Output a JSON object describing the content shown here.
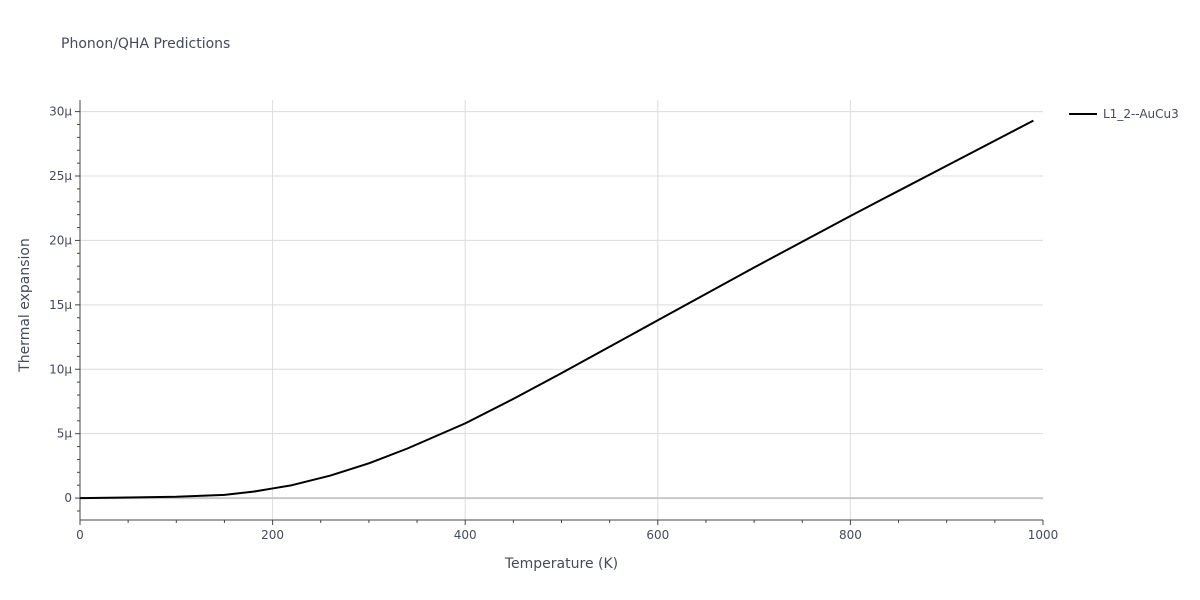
{
  "chart_data": {
    "type": "line",
    "title": "Phonon/QHA Predictions",
    "xlabel": "Temperature (K)",
    "ylabel": "Thermal expansion",
    "xlim": [
      0,
      1000
    ],
    "ylim": [
      -1.7e-06,
      3.09e-05
    ],
    "x_ticks": [
      0,
      200,
      400,
      600,
      800,
      1000
    ],
    "x_tick_labels": [
      "0",
      "200",
      "400",
      "600",
      "800",
      "1000"
    ],
    "y_ticks": [
      0,
      5e-06,
      1e-05,
      1.5e-05,
      2e-05,
      2.5e-05,
      3e-05
    ],
    "y_tick_labels": [
      "0",
      "5µ",
      "10µ",
      "15µ",
      "20µ",
      "25µ",
      "30µ"
    ],
    "grid": true,
    "legend_position": "top-right, outside plot",
    "series": [
      {
        "name": "L1_2--AuCu3",
        "color": "#000000",
        "x": [
          0,
          50,
          100,
          150,
          180,
          200,
          220,
          260,
          300,
          340,
          400,
          450,
          500,
          600,
          700,
          800,
          900,
          990
        ],
        "y": [
          0,
          5e-08,
          1e-07,
          2.5e-07,
          5e-07,
          7.5e-07,
          1e-06,
          1.75e-06,
          2.7e-06,
          3.85e-06,
          5.8e-06,
          7.7e-06,
          9.7e-06,
          1.38e-05,
          1.79e-05,
          2.19e-05,
          2.58e-05,
          2.93e-05
        ]
      }
    ]
  }
}
